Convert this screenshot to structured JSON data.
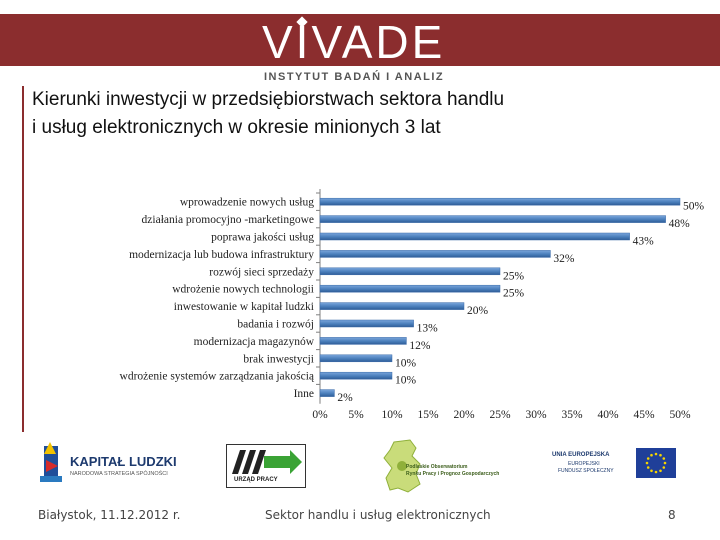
{
  "header": {
    "brand": "VIVADE",
    "tagline": "INSTYTUT BADAŃ I ANALIZ"
  },
  "slide": {
    "title_line1": "Kierunki inwestycji w przedsiębiorstwach sektora handlu",
    "title_line2": "i usług elektronicznych w okresie minionych 3 lat"
  },
  "colors": {
    "brand_red": "#8b2d2e",
    "bar_blue": "#4a7ebb"
  },
  "chart_data": {
    "type": "bar",
    "orientation": "horizontal",
    "categories": [
      "wprowadzenie nowych usług",
      "działania promocyjno -marketingowe",
      "poprawa jakości usług",
      "modernizacja lub budowa infrastruktury",
      "rozwój sieci sprzedaży",
      "wdrożenie nowych technologii",
      "inwestowanie w kapitał ludzki",
      "badania i rozwój",
      "modernizacja magazynów",
      "brak inwestycji",
      "wdrożenie systemów zarządzania jakością",
      "Inne"
    ],
    "values": [
      50,
      48,
      43,
      32,
      25,
      25,
      20,
      13,
      12,
      10,
      10,
      2
    ],
    "value_labels": [
      "50%",
      "48%",
      "43%",
      "32%",
      "25%",
      "25%",
      "20%",
      "13%",
      "12%",
      "10%",
      "10%",
      "2%"
    ],
    "xlim": [
      0,
      50
    ],
    "xticks": [
      "0%",
      "5%",
      "10%",
      "15%",
      "20%",
      "25%",
      "30%",
      "35%",
      "40%",
      "45%",
      "50%"
    ],
    "grid": false
  },
  "logos": {
    "kapital_ludzki": "KAPITAŁ LUDZKI",
    "kapital_ludzki_sub": "NARODOWA STRATEGIA SPÓJNOŚCI",
    "urzad_pracy": "URZĄD PRACY",
    "obserwatorium_l1": "Podlaskie Obserwatorium",
    "obserwatorium_l2": "Rynku Pracy i Prognoz Gospodarczych",
    "ue_l1": "UNIA EUROPEJSKA",
    "ue_l2": "EUROPEJSKI",
    "ue_l3": "FUNDUSZ SPOŁECZNY"
  },
  "footer": {
    "date": "Białystok, 11.12.2012 r.",
    "center": "Sektor handlu i usług elektronicznych",
    "page": "8"
  }
}
